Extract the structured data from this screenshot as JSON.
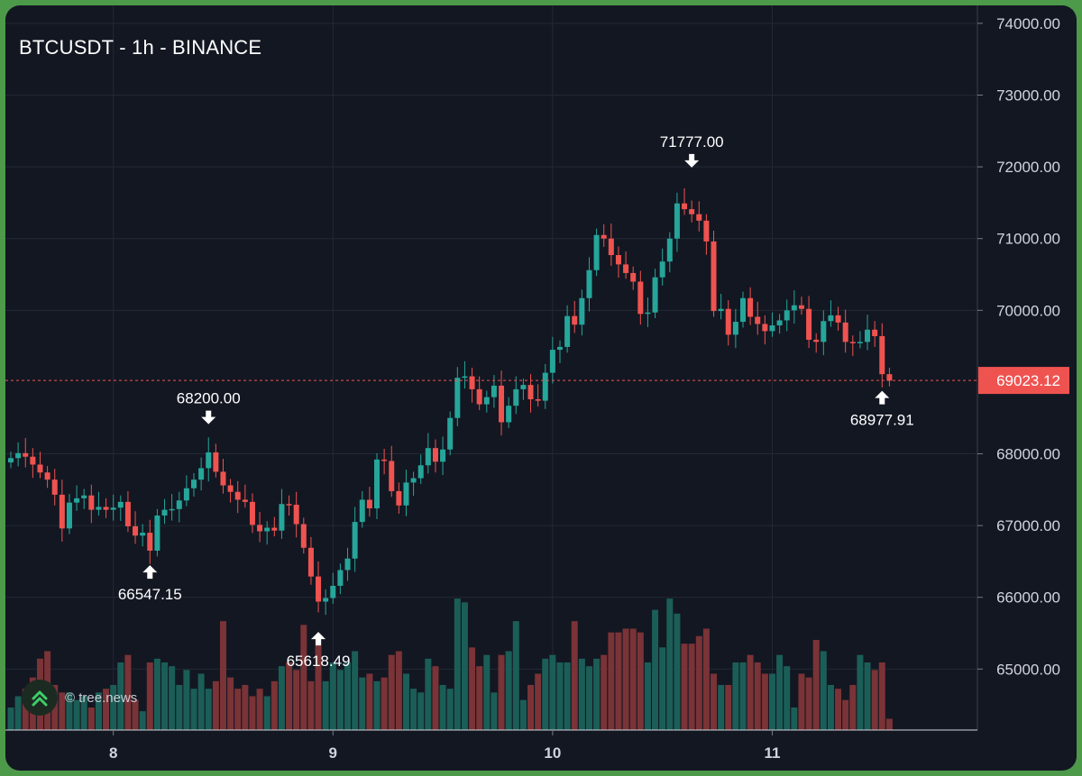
{
  "chart_title": "BTCUSDT - 1h - BINANCE",
  "watermark": "© tree.news",
  "colors": {
    "up": "#26a69a",
    "down": "#ef5350",
    "background": "#131722",
    "grid": "#232834",
    "text": "#d1d4dc",
    "last_price_bg": "#ef5350"
  },
  "chart_data": {
    "type": "candlestick",
    "symbol": "BTCUSDT",
    "interval": "1h",
    "exchange": "BINANCE",
    "ylim": [
      64150,
      74250
    ],
    "y_ticks": [
      "74000.00",
      "73000.00",
      "72000.00",
      "71000.00",
      "70000.00",
      "68000.00",
      "67000.00",
      "66000.00",
      "65000.00"
    ],
    "x_ticks": [
      {
        "label": "8",
        "index": 14
      },
      {
        "label": "9",
        "index": 44
      },
      {
        "label": "10",
        "index": 74
      },
      {
        "label": "11",
        "index": 104
      }
    ],
    "last_price": {
      "value": 69023.12,
      "label": "69023.12"
    },
    "annotations": [
      {
        "label": "66547.15",
        "index": 19,
        "price": 66547.15,
        "kind": "low"
      },
      {
        "label": "68200.00",
        "index": 27,
        "price": 68200.0,
        "kind": "high"
      },
      {
        "label": "65618.49",
        "index": 42,
        "price": 65618.49,
        "kind": "low"
      },
      {
        "label": "71777.00",
        "index": 93,
        "price": 71777.0,
        "kind": "high"
      },
      {
        "label": "68977.91",
        "index": 119,
        "price": 68977.91,
        "kind": "low"
      }
    ],
    "ohlc_close": [
      67940,
      68010,
      67960,
      67850,
      67740,
      67640,
      67430,
      66960,
      67320,
      67380,
      67420,
      67220,
      67260,
      67220,
      67250,
      67330,
      66990,
      66860,
      66900,
      66650,
      67140,
      67220,
      67230,
      67350,
      67520,
      67640,
      67800,
      68020,
      67750,
      67560,
      67470,
      67360,
      67330,
      67010,
      66920,
      66970,
      66930,
      67300,
      67290,
      67020,
      66690,
      66290,
      65940,
      65990,
      66160,
      66380,
      66540,
      67050,
      67360,
      67240,
      67920,
      67900,
      67480,
      67280,
      67600,
      67660,
      67840,
      68080,
      67890,
      68060,
      68500,
      69060,
      69080,
      68900,
      68690,
      68790,
      68950,
      68440,
      68670,
      68900,
      68960,
      68760,
      68740,
      69130,
      69450,
      69490,
      69920,
      69800,
      70170,
      70560,
      71050,
      71000,
      70770,
      70640,
      70520,
      70400,
      69950,
      69970,
      70460,
      70680,
      71000,
      71490,
      71410,
      71340,
      71250,
      70960,
      69990,
      70020,
      69660,
      69840,
      70170,
      69910,
      69810,
      69710,
      69790,
      69860,
      70000,
      70070,
      70020,
      69590,
      69560,
      69850,
      69930,
      69830,
      69560,
      69550,
      69560,
      69730,
      69640,
      69110,
      69020
    ],
    "ohlc_open": [
      67880,
      67940,
      68010,
      67960,
      67850,
      67740,
      67640,
      67430,
      66960,
      67320,
      67380,
      67420,
      67220,
      67260,
      67220,
      67250,
      67330,
      66990,
      66860,
      66900,
      66650,
      67140,
      67220,
      67230,
      67350,
      67520,
      67640,
      67800,
      68020,
      67750,
      67560,
      67470,
      67360,
      67330,
      67010,
      66920,
      66970,
      66930,
      67300,
      67290,
      67020,
      66690,
      66290,
      65940,
      65990,
      66160,
      66380,
      66540,
      67050,
      67360,
      67240,
      67920,
      67900,
      67480,
      67280,
      67600,
      67660,
      67840,
      68080,
      67890,
      68060,
      68500,
      69060,
      69080,
      68900,
      68690,
      68790,
      68950,
      68440,
      68670,
      68900,
      68960,
      68760,
      68740,
      69130,
      69450,
      69490,
      69920,
      69800,
      70170,
      70560,
      71050,
      71000,
      70770,
      70640,
      70520,
      70400,
      69950,
      69970,
      70460,
      70680,
      71000,
      71490,
      71410,
      71340,
      71250,
      70960,
      69990,
      70020,
      69660,
      69840,
      70170,
      69910,
      69810,
      69710,
      69790,
      69860,
      70000,
      70070,
      70020,
      69590,
      69560,
      69850,
      69930,
      69830,
      69560,
      69550,
      69560,
      69730,
      69640,
      69110
    ],
    "volume_levels": [
      0.3,
      0.45,
      0.55,
      0.7,
      0.95,
      1.05,
      0.6,
      0.5,
      0.5,
      0.4,
      0.45,
      0.3,
      0.5,
      0.55,
      0.6,
      0.9,
      1.0,
      0.4,
      0.25,
      0.9,
      0.95,
      0.9,
      0.85,
      0.6,
      0.8,
      0.55,
      0.75,
      0.55,
      0.65,
      1.45,
      0.7,
      0.55,
      0.6,
      0.45,
      0.55,
      0.45,
      0.65,
      0.85,
      0.9,
      0.8,
      1.4,
      0.65,
      1.25,
      0.65,
      0.9,
      0.8,
      0.9,
      1.05,
      0.7,
      0.75,
      0.65,
      0.7,
      1.0,
      1.05,
      0.75,
      0.55,
      0.5,
      0.95,
      0.85,
      0.6,
      0.55,
      1.75,
      1.7,
      1.1,
      0.85,
      1.0,
      0.5,
      1.0,
      1.05,
      1.45,
      0.4,
      0.6,
      0.75,
      0.95,
      1.0,
      0.9,
      0.9,
      1.45,
      0.95,
      0.85,
      0.95,
      1.0,
      1.3,
      1.3,
      1.35,
      1.35,
      1.3,
      0.9,
      1.6,
      1.1,
      1.75,
      1.55,
      1.15,
      1.15,
      1.25,
      1.35,
      0.75,
      0.6,
      0.6,
      0.9,
      0.9,
      1.0,
      0.9,
      0.75,
      0.75,
      1.0,
      0.85,
      0.3,
      0.75,
      0.7,
      1.2,
      1.05,
      0.6,
      0.55,
      0.4,
      0.6,
      1.0,
      0.9,
      0.8,
      0.9,
      0.15
    ]
  }
}
